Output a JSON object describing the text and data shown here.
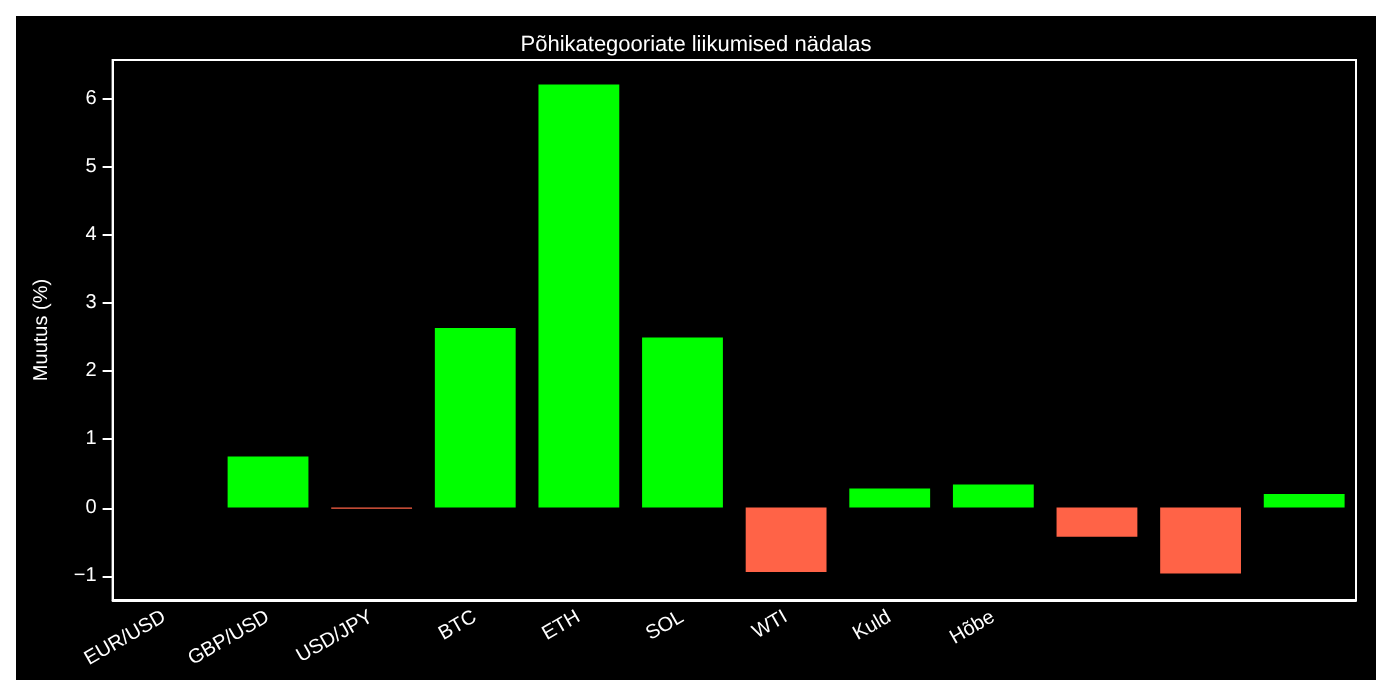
{
  "chart_data": {
    "type": "bar",
    "title": "Põhikategooriate liikumised nädalas",
    "ylabel": "Muutus (%)",
    "categories": [
      "EUR/USD",
      "GBP/USD",
      "USD/JPY",
      "BTC",
      "ETH",
      "SOL",
      "WTI",
      "Kuld",
      "Hõbe",
      null,
      null,
      null
    ],
    "values": [
      0,
      0.75,
      -0.02,
      2.64,
      6.22,
      2.5,
      -0.95,
      0.28,
      0.34,
      -0.43,
      -0.97,
      0.2
    ],
    "colors": [
      "#00ff00",
      "#00ff00",
      "#ff6347",
      "#00ff00",
      "#00ff00",
      "#00ff00",
      "#ff6347",
      "#00ff00",
      "#00ff00",
      "#ff6347",
      "#ff6347",
      "#00ff00"
    ],
    "ylim": [
      -1.36,
      6.58
    ],
    "yticks": [
      {
        "value": -1,
        "label": "−1"
      },
      0,
      1,
      2,
      3,
      4,
      5,
      6
    ],
    "grid": false
  }
}
